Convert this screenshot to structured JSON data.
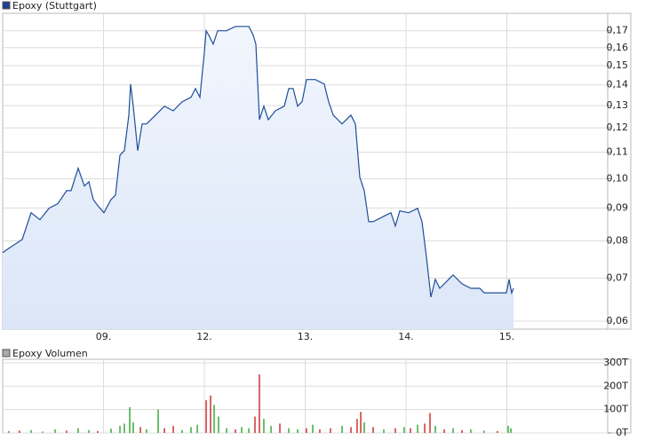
{
  "chart_data": [
    {
      "type": "line",
      "title": "Epoxy (Stuttgart)",
      "log_scale": true,
      "grid": true,
      "color": "#1f4e99",
      "fill": "#dbe6f8",
      "xlim": [
        0,
        6
      ],
      "xticks": [
        {
          "value": 1,
          "label": "09."
        },
        {
          "value": 2,
          "label": "12."
        },
        {
          "value": 3,
          "label": "13."
        },
        {
          "value": 4,
          "label": "14."
        },
        {
          "value": 5,
          "label": "15."
        }
      ],
      "ylim": [
        0.0583,
        0.181
      ],
      "yticks": [
        {
          "value": 0.06,
          "label": "0,06"
        },
        {
          "value": 0.07,
          "label": "0,07"
        },
        {
          "value": 0.08,
          "label": "0,08"
        },
        {
          "value": 0.09,
          "label": "0,09"
        },
        {
          "value": 0.1,
          "label": "0,10"
        },
        {
          "value": 0.11,
          "label": "0,11"
        },
        {
          "value": 0.12,
          "label": "0,12"
        },
        {
          "value": 0.13,
          "label": "0,13"
        },
        {
          "value": 0.14,
          "label": "0,14"
        },
        {
          "value": 0.15,
          "label": "0,15"
        },
        {
          "value": 0.16,
          "label": "0,16"
        },
        {
          "value": 0.17,
          "label": "0,17"
        }
      ],
      "x": [
        0,
        0.062,
        0.194,
        0.282,
        0.37,
        0.458,
        0.546,
        0.634,
        0.678,
        0.749,
        0.811,
        0.855,
        0.899,
        0.943,
        1.004,
        1.075,
        1.119,
        1.163,
        1.207,
        1.251,
        1.269,
        1.295,
        1.339,
        1.383,
        1.427,
        1.515,
        1.604,
        1.692,
        1.78,
        1.868,
        1.912,
        1.956,
        2.0,
        2.018,
        2.044,
        2.088,
        2.132,
        2.22,
        2.308,
        2.396,
        2.441,
        2.485,
        2.511,
        2.546,
        2.59,
        2.634,
        2.705,
        2.793,
        2.837,
        2.881,
        2.925,
        2.969,
        3.013,
        3.101,
        3.189,
        3.233,
        3.278,
        3.366,
        3.454,
        3.498,
        3.542,
        3.586,
        3.63,
        3.674,
        3.762,
        3.85,
        3.894,
        3.938,
        4.026,
        4.115,
        4.159,
        4.203,
        4.247,
        4.291,
        4.335,
        4.423,
        4.467,
        4.555,
        4.643,
        4.731,
        4.775,
        4.863,
        4.996,
        5.022,
        5.048,
        5.066
      ],
      "values": [
        0.0767,
        0.0779,
        0.0804,
        0.0885,
        0.0863,
        0.0899,
        0.0914,
        0.0958,
        0.0958,
        0.1038,
        0.0974,
        0.0989,
        0.0928,
        0.0908,
        0.0885,
        0.0928,
        0.0943,
        0.1088,
        0.1106,
        0.1256,
        0.1404,
        0.1297,
        0.1106,
        0.1217,
        0.1217,
        0.1256,
        0.1297,
        0.1276,
        0.1318,
        0.1339,
        0.1382,
        0.1339,
        0.157,
        0.17,
        0.1673,
        0.1621,
        0.17,
        0.17,
        0.1727,
        0.1727,
        0.1727,
        0.1673,
        0.1621,
        0.1236,
        0.1297,
        0.1236,
        0.1276,
        0.1297,
        0.1382,
        0.1382,
        0.1297,
        0.1318,
        0.1427,
        0.1427,
        0.1404,
        0.1318,
        0.1256,
        0.1217,
        0.1256,
        0.1217,
        0.1005,
        0.0958,
        0.0857,
        0.0857,
        0.0871,
        0.0885,
        0.0844,
        0.0891,
        0.0885,
        0.0899,
        0.0857,
        0.0755,
        0.0654,
        0.0697,
        0.0675,
        0.0697,
        0.0708,
        0.0686,
        0.0675,
        0.0675,
        0.0664,
        0.0664,
        0.0664,
        0.0697,
        0.0664,
        0.0675
      ]
    },
    {
      "type": "bar",
      "title": "Epoxy Volumen",
      "grid": true,
      "xlim": [
        0,
        6
      ],
      "xticks": [
        1,
        2,
        3,
        4,
        5
      ],
      "ylim": [
        0,
        315000
      ],
      "yticks": [
        {
          "value": 0,
          "label": "0T"
        },
        {
          "value": 100000,
          "label": "100T"
        },
        {
          "value": 200000,
          "label": "200T"
        },
        {
          "value": 300000,
          "label": "300T"
        }
      ],
      "x": [
        0.062,
        0.167,
        0.282,
        0.396,
        0.52,
        0.634,
        0.749,
        0.855,
        0.943,
        1.075,
        1.163,
        1.207,
        1.26,
        1.295,
        1.366,
        1.427,
        1.542,
        1.604,
        1.692,
        1.78,
        1.868,
        1.93,
        2.018,
        2.062,
        2.097,
        2.141,
        2.22,
        2.308,
        2.37,
        2.441,
        2.502,
        2.546,
        2.59,
        2.661,
        2.749,
        2.837,
        2.925,
        3.013,
        3.075,
        3.145,
        3.251,
        3.366,
        3.454,
        3.515,
        3.551,
        3.586,
        3.674,
        3.78,
        3.894,
        3.982,
        4.044,
        4.115,
        4.185,
        4.238,
        4.291,
        4.379,
        4.467,
        4.555,
        4.643,
        4.775,
        4.907,
        5.013,
        5.04
      ],
      "values": [
        8000,
        10000,
        12000,
        6000,
        15000,
        10000,
        20000,
        12000,
        8000,
        18000,
        30000,
        40000,
        110000,
        45000,
        25000,
        15000,
        100000,
        20000,
        30000,
        12000,
        25000,
        35000,
        140000,
        160000,
        120000,
        70000,
        20000,
        15000,
        25000,
        20000,
        70000,
        250000,
        60000,
        30000,
        40000,
        20000,
        15000,
        20000,
        35000,
        15000,
        20000,
        30000,
        25000,
        60000,
        90000,
        45000,
        25000,
        15000,
        20000,
        25000,
        20000,
        35000,
        40000,
        85000,
        30000,
        15000,
        20000,
        12000,
        15000,
        10000,
        8000,
        30000,
        20000
      ],
      "colors": [
        "#3aaa3a",
        "#cc3333",
        "#3aaa3a",
        "#3aaa3a",
        "#3aaa3a",
        "#cc3333",
        "#3aaa3a",
        "#3aaa3a",
        "#cc3333",
        "#3aaa3a",
        "#3aaa3a",
        "#3aaa3a",
        "#3aaa3a",
        "#3aaa3a",
        "#cc3333",
        "#3aaa3a",
        "#3aaa3a",
        "#cc3333",
        "#cc3333",
        "#3aaa3a",
        "#3aaa3a",
        "#3aaa3a",
        "#cc3333",
        "#cc3333",
        "#3aaa3a",
        "#3aaa3a",
        "#3aaa3a",
        "#cc3333",
        "#3aaa3a",
        "#3aaa3a",
        "#cc3333",
        "#cc3333",
        "#3aaa3a",
        "#3aaa3a",
        "#cc3333",
        "#3aaa3a",
        "#3aaa3a",
        "#cc3333",
        "#3aaa3a",
        "#cc3333",
        "#cc3333",
        "#3aaa3a",
        "#cc3333",
        "#cc3333",
        "#cc3333",
        "#3aaa3a",
        "#cc3333",
        "#3aaa3a",
        "#cc3333",
        "#3aaa3a",
        "#cc3333",
        "#3aaa3a",
        "#cc3333",
        "#cc3333",
        "#3aaa3a",
        "#cc3333",
        "#3aaa3a",
        "#cc3333",
        "#3aaa3a",
        "#3aaa3a",
        "#cc3333",
        "#3aaa3a",
        "#3aaa3a"
      ]
    }
  ]
}
